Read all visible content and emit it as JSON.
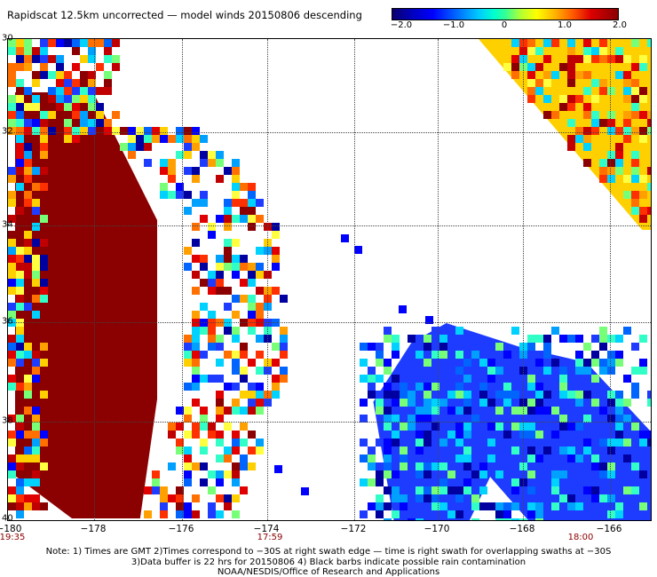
{
  "title": "Rapidscat 12.5km uncorrected — model winds 20150806 descending",
  "colorbar": {
    "ticks": [
      "−2.0",
      "−1.0",
      "0",
      "1.0",
      "2.0"
    ],
    "tick_values": [
      -2.0,
      -1.0,
      0,
      1.0,
      2.0
    ],
    "range": [
      -2.0,
      2.0
    ],
    "colormap": [
      "#0a006e",
      "#0000c8",
      "#0000ff",
      "#0064ff",
      "#00c8ff",
      "#00ffd0",
      "#32ff96",
      "#b4ff32",
      "#ffff00",
      "#ffb400",
      "#ff5a00",
      "#dc0000",
      "#8b0000"
    ]
  },
  "map": {
    "lon_labels": [
      "−180",
      "−178",
      "−176",
      "−174",
      "−172",
      "−170",
      "−168",
      "−166"
    ],
    "lat_labels": [
      "30",
      "32",
      "34",
      "36",
      "38",
      "40"
    ],
    "times": [
      "19:35",
      "17:59",
      "18:00"
    ],
    "swath_colors": {
      "positive": [
        "#8b0000",
        "#c00000",
        "#e00000",
        "#ff3000",
        "#ff7000",
        "#ffa000",
        "#ffd000",
        "#ffff40"
      ],
      "negative": [
        "#0000a0",
        "#0000ff",
        "#1e3cff",
        "#0064ff",
        "#00a0ff",
        "#00d2ff",
        "#32ffc8",
        "#78ff78"
      ]
    }
  },
  "notes": {
    "line1": "Note: 1) Times are GMT 2)Times correspond to −30S at right swath edge — time is right swath for overlapping swaths at −30S",
    "line2": "3)Data buffer is 22 hrs for 20150806 4) Black barbs indicate possible rain contamination",
    "line3": "NOAA/NESDIS/Office of Research and Applications"
  }
}
